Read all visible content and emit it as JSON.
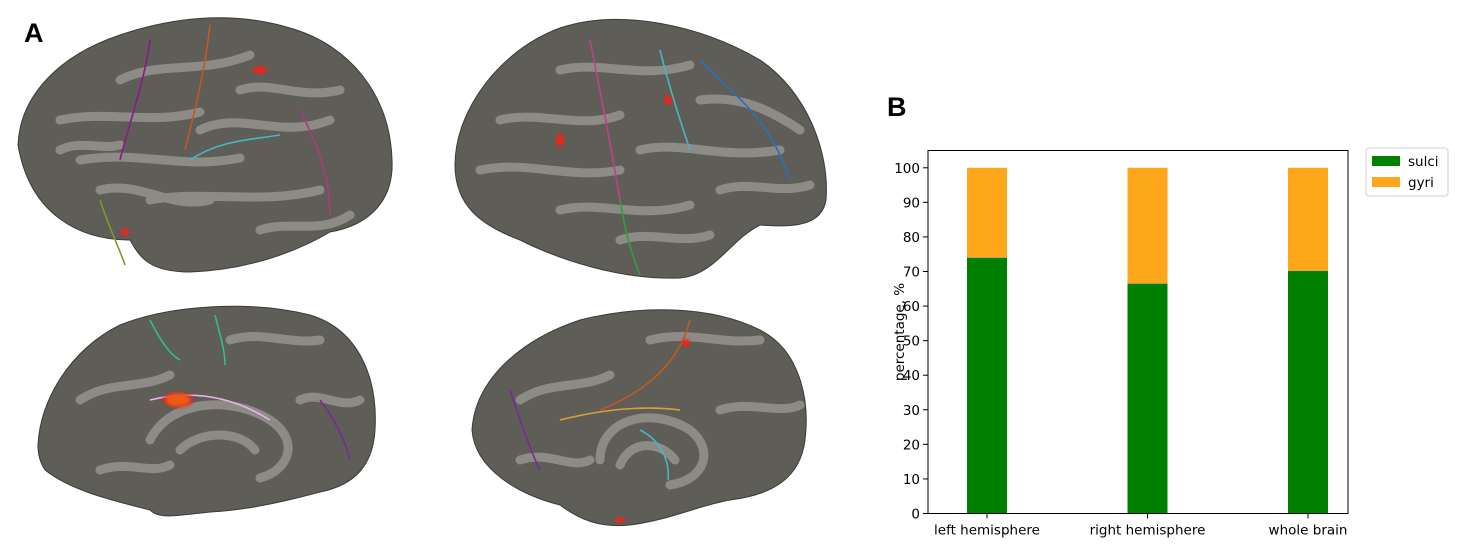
{
  "panels": {
    "a_label": "A",
    "b_label": "B"
  },
  "colors": {
    "sulci": "#008000",
    "gyri": "#ffa71a",
    "cortex_dark": "#5e5d58",
    "cortex_light": "#8c8b86",
    "activation": "#e8281c"
  },
  "brain_views": [
    {
      "view": "left-lateral"
    },
    {
      "view": "right-lateral"
    },
    {
      "view": "left-medial"
    },
    {
      "view": "right-medial"
    }
  ],
  "chart_data": {
    "type": "bar",
    "stacked": true,
    "categories": [
      "left hemisphere",
      "right hemisphere",
      "whole brain"
    ],
    "series": [
      {
        "name": "sulci",
        "values": [
          74,
          66.5,
          70.2
        ],
        "color": "#008000"
      },
      {
        "name": "gyri",
        "values": [
          26,
          33.5,
          29.8
        ],
        "color": "#ffa71a"
      }
    ],
    "xlabel": "",
    "ylabel": "percentage, %",
    "ylim": [
      0,
      105
    ],
    "yticks": [
      0,
      10,
      20,
      30,
      40,
      50,
      60,
      70,
      80,
      90,
      100
    ],
    "legend_position": "outside-top-right",
    "grid": false
  }
}
